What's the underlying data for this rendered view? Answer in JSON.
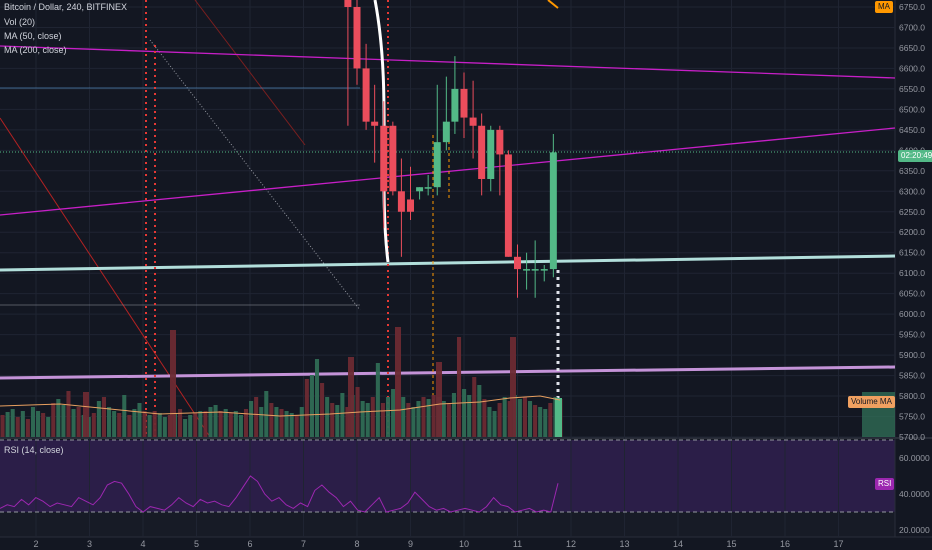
{
  "legend": {
    "symbol": "Bitcoin / Dollar, 240, BITFINEX",
    "volume": "Vol (20)",
    "ma50": "MA (50, close)",
    "ma200": "MA (200, close)"
  },
  "rsi_label": "RSI (14, close)",
  "tags": {
    "ma_badge": "MA",
    "countdown": "02:20:49",
    "volume_ma": "Volume MA",
    "rsi_badge": "RSI"
  },
  "colors": {
    "background": "#131722",
    "up": "#53b987",
    "down": "#eb4d5c",
    "support_line": "#b2dfdb",
    "trendline": "#c71fc7",
    "rsi_band": "#2e1f4d",
    "rsi_line": "#9c27b0",
    "volume_ma": "#e8a060"
  },
  "chart_data": [
    {
      "type": "candlestick",
      "ylim": [
        5700,
        6800
      ],
      "price_ticks": [
        "6750.0",
        "6700.0",
        "6650.0",
        "6600.0",
        "6550.0",
        "6500.0",
        "6450.0",
        "6400.0",
        "6350.0",
        "6300.0",
        "6250.0",
        "6200.0",
        "6150.0",
        "6100.0",
        "6050.0",
        "6000.0",
        "5950.0",
        "5900.0",
        "5850.0",
        "5800.0",
        "5750.0",
        "5700.0"
      ],
      "x_ticks": [
        "2",
        "3",
        "4",
        "5",
        "6",
        "7",
        "8",
        "9",
        "10",
        "11",
        "12",
        "13",
        "14",
        "15",
        "16",
        "17"
      ],
      "x_tick_days": [
        2,
        3,
        4,
        5,
        6,
        7,
        8,
        9,
        10,
        11,
        12,
        13,
        14,
        15,
        16,
        17
      ],
      "candles": [
        {
          "day": 7.83,
          "o": 6850,
          "h": 6850,
          "l": 6460,
          "c": 6750
        },
        {
          "day": 8.0,
          "o": 6750,
          "h": 6800,
          "l": 6560,
          "c": 6600
        },
        {
          "day": 8.17,
          "o": 6600,
          "h": 6660,
          "l": 6450,
          "c": 6470
        },
        {
          "day": 8.33,
          "o": 6470,
          "h": 6560,
          "l": 6370,
          "c": 6460
        },
        {
          "day": 8.5,
          "o": 6460,
          "h": 6520,
          "l": 6210,
          "c": 6300
        },
        {
          "day": 8.67,
          "o": 6460,
          "h": 6470,
          "l": 6290,
          "c": 6300
        },
        {
          "day": 8.83,
          "o": 6300,
          "h": 6380,
          "l": 6140,
          "c": 6250
        },
        {
          "day": 9.0,
          "o": 6280,
          "h": 6360,
          "l": 6230,
          "c": 6250
        },
        {
          "day": 9.17,
          "o": 6300,
          "h": 6310,
          "l": 6280,
          "c": 6310
        },
        {
          "day": 9.33,
          "o": 6310,
          "h": 6340,
          "l": 6290,
          "c": 6310
        },
        {
          "day": 9.5,
          "o": 6310,
          "h": 6560,
          "l": 6290,
          "c": 6420
        },
        {
          "day": 9.67,
          "o": 6420,
          "h": 6580,
          "l": 6400,
          "c": 6470
        },
        {
          "day": 9.83,
          "o": 6470,
          "h": 6630,
          "l": 6440,
          "c": 6550
        },
        {
          "day": 10.0,
          "o": 6550,
          "h": 6590,
          "l": 6430,
          "c": 6480
        },
        {
          "day": 10.17,
          "o": 6480,
          "h": 6570,
          "l": 6380,
          "c": 6460
        },
        {
          "day": 10.33,
          "o": 6460,
          "h": 6490,
          "l": 6290,
          "c": 6330
        },
        {
          "day": 10.5,
          "o": 6330,
          "h": 6460,
          "l": 6300,
          "c": 6450
        },
        {
          "day": 10.67,
          "o": 6450,
          "h": 6460,
          "l": 6290,
          "c": 6390
        },
        {
          "day": 10.83,
          "o": 6390,
          "h": 6400,
          "l": 6140,
          "c": 6140
        },
        {
          "day": 11.0,
          "o": 6140,
          "h": 6170,
          "l": 6040,
          "c": 6110
        },
        {
          "day": 11.17,
          "o": 6110,
          "h": 6150,
          "l": 6060,
          "c": 6110
        },
        {
          "day": 11.33,
          "o": 6110,
          "h": 6180,
          "l": 6040,
          "c": 6110
        },
        {
          "day": 11.5,
          "o": 6110,
          "h": 6120,
          "l": 6080,
          "c": 6110
        },
        {
          "day": 11.67,
          "o": 6110,
          "h": 6440,
          "l": 6090,
          "c": 6395
        }
      ],
      "last_price": 6395
    },
    {
      "type": "bar",
      "name": "Vol (20)",
      "volume_ma_label": "Volume MA"
    },
    {
      "type": "line",
      "title": "RSI (14, close)",
      "ylim": [
        20,
        70
      ],
      "y_ticks": [
        "60.0000",
        "40.0000",
        "20.0000"
      ],
      "bands": [
        70,
        30
      ],
      "values_start_day": 1.67,
      "values_step_day": 0.167
    }
  ]
}
